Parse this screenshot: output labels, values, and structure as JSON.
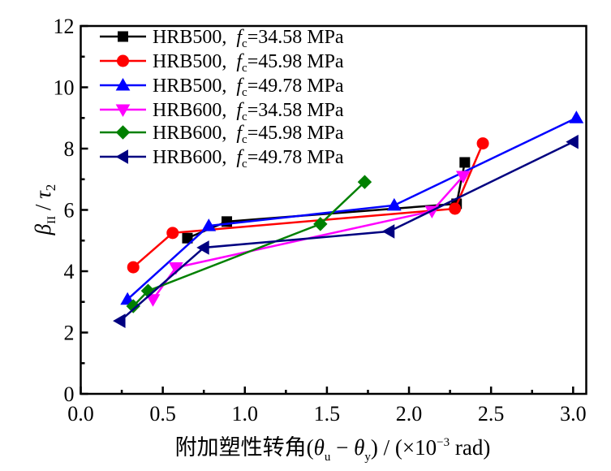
{
  "chart_data": {
    "type": "line",
    "title": "",
    "xlabel": "附加塑性转角(θu − θy) / (×10⁻³ rad)",
    "xlabel_parts": {
      "prefix": "附加塑性转角(",
      "theta": "θ",
      "sub_u": "u",
      "minus": " − ",
      "sub_y": "y",
      "suffix_open": ") / (×10",
      "exp": "−3",
      "suffix_close": " rad)"
    },
    "ylabel": "βII / τ2",
    "ylabel_parts": {
      "beta": "β",
      "sub_II": "II",
      "slash": " / ",
      "tau": "τ",
      "sub_2": "2"
    },
    "xlim": [
      0,
      3.08
    ],
    "ylim": [
      0,
      12
    ],
    "x_ticks": [
      "0.0",
      "0.5",
      "1.0",
      "1.5",
      "2.0",
      "2.5",
      "3.0"
    ],
    "x_tick_values": [
      0,
      0.5,
      1.0,
      1.5,
      2.0,
      2.5,
      3.0
    ],
    "y_ticks": [
      "0",
      "2",
      "4",
      "6",
      "8",
      "10",
      "12"
    ],
    "y_tick_values": [
      0,
      2,
      4,
      6,
      8,
      10,
      12
    ],
    "grid": false,
    "legend_position": "top-left",
    "series": [
      {
        "name": "HRB500, fc=34.58 MPa",
        "grade": "HRB500",
        "fc_label": "f",
        "fc_sub": "c",
        "fc_value": "=34.58 MPa",
        "color": "#000000",
        "marker": "square",
        "points": [
          [
            0.65,
            5.08
          ],
          [
            0.89,
            5.62
          ],
          [
            2.29,
            6.2
          ],
          [
            2.34,
            7.55
          ]
        ]
      },
      {
        "name": "HRB500, fc=45.98 MPa",
        "grade": "HRB500",
        "fc_label": "f",
        "fc_sub": "c",
        "fc_value": "=45.98 MPa",
        "color": "#ff0000",
        "marker": "circle",
        "points": [
          [
            0.32,
            4.13
          ],
          [
            0.56,
            5.25
          ],
          [
            2.28,
            6.04
          ],
          [
            2.45,
            8.17
          ]
        ]
      },
      {
        "name": "HRB500, fc=49.78 MPa",
        "grade": "HRB500",
        "fc_label": "f",
        "fc_sub": "c",
        "fc_value": "=49.78 MPa",
        "color": "#0000ff",
        "marker": "triangle-up",
        "points": [
          [
            0.285,
            3.08
          ],
          [
            0.78,
            5.48
          ],
          [
            1.91,
            6.15
          ],
          [
            3.02,
            9.0
          ]
        ]
      },
      {
        "name": "HRB600, fc=34.58 MPa",
        "grade": "HRB600",
        "fc_label": "f",
        "fc_sub": "c",
        "fc_value": "=34.58 MPa",
        "color": "#ff00ff",
        "marker": "triangle-down",
        "points": [
          [
            0.44,
            3.08
          ],
          [
            0.58,
            4.12
          ],
          [
            2.14,
            5.96
          ],
          [
            2.33,
            7.1
          ]
        ]
      },
      {
        "name": "HRB600, fc=45.98 MPa",
        "grade": "HRB600",
        "fc_label": "f",
        "fc_sub": "c",
        "fc_value": "=45.98 MPa",
        "color": "#008000",
        "marker": "diamond",
        "points": [
          [
            0.32,
            2.86
          ],
          [
            0.41,
            3.36
          ],
          [
            1.46,
            5.54
          ],
          [
            1.73,
            6.91
          ]
        ]
      },
      {
        "name": "HRB600, fc=49.78 MPa",
        "grade": "HRB600",
        "fc_label": "f",
        "fc_sub": "c",
        "fc_value": "=49.78 MPa",
        "color": "#000080",
        "marker": "triangle-left",
        "points": [
          [
            0.24,
            2.38
          ],
          [
            0.75,
            4.77
          ],
          [
            1.88,
            5.3
          ],
          [
            3.0,
            8.22
          ]
        ]
      }
    ]
  }
}
